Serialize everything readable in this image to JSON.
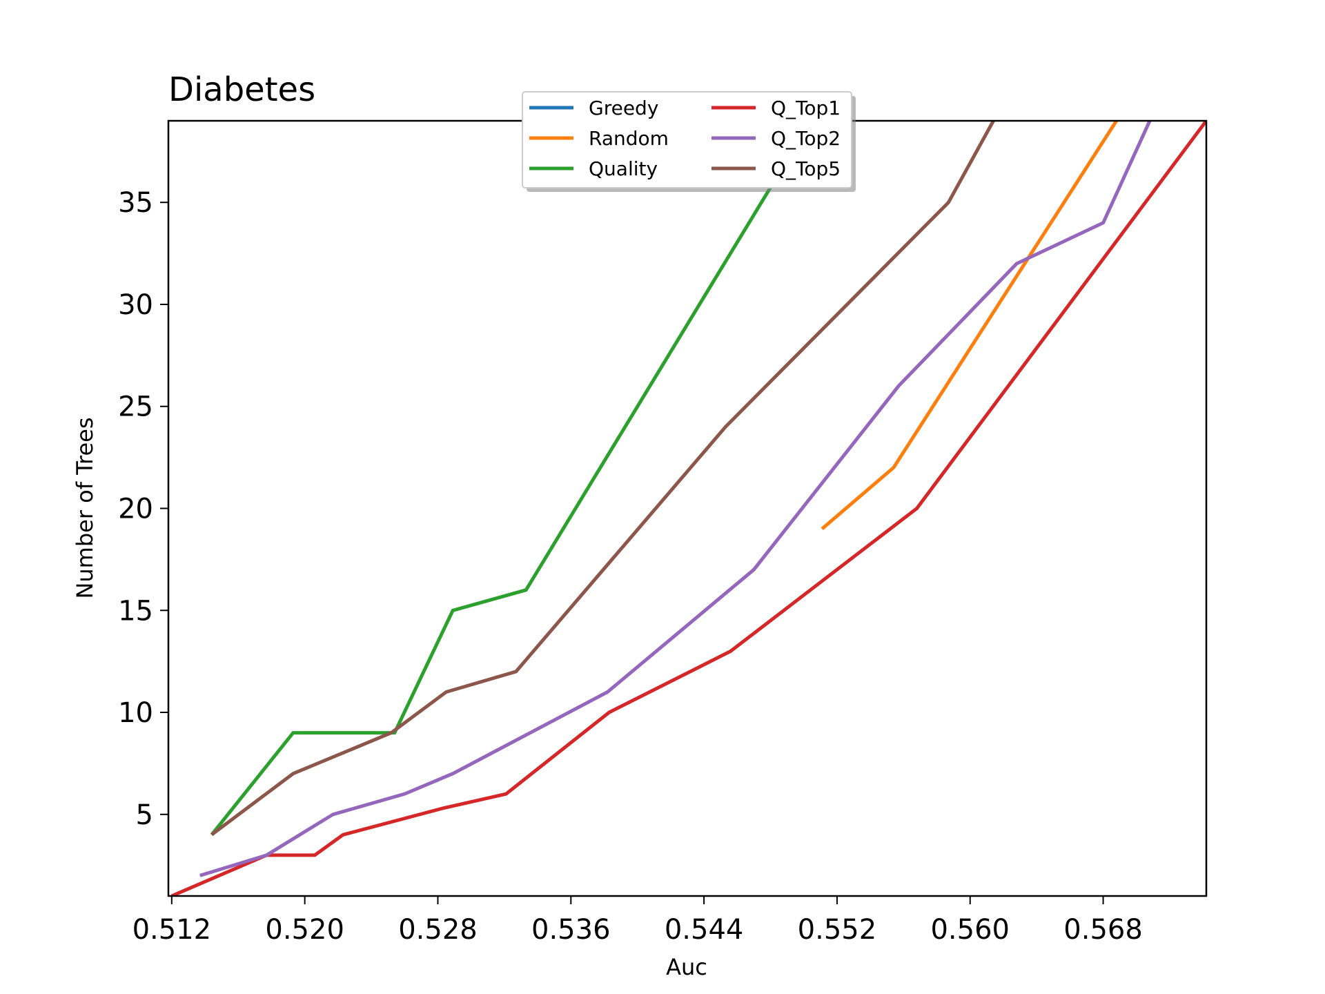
{
  "chart_data": {
    "type": "line",
    "title": "Diabetes",
    "xlabel": "Auc",
    "ylabel": "Number of Trees",
    "xlim": [
      0.5118,
      0.5742
    ],
    "ylim": [
      1,
      39
    ],
    "xticks": [
      0.512,
      0.52,
      0.528,
      0.536,
      0.544,
      0.552,
      0.56,
      0.568
    ],
    "xtick_labels": [
      "0.512",
      "0.520",
      "0.528",
      "0.536",
      "0.544",
      "0.552",
      "0.560",
      "0.568"
    ],
    "yticks": [
      5,
      10,
      15,
      20,
      25,
      30,
      35
    ],
    "ytick_labels": [
      "5",
      "10",
      "15",
      "20",
      "25",
      "30",
      "35"
    ],
    "grid": false,
    "legend": {
      "placement": "top-center",
      "columns": 2
    },
    "series": [
      {
        "name": "Greedy",
        "color": "#1f77b4",
        "x": [],
        "y": []
      },
      {
        "name": "Random",
        "color": "#ff7f0e",
        "x": [
          0.5511,
          0.5554,
          0.5688
        ],
        "y": [
          19,
          22,
          39
        ]
      },
      {
        "name": "Quality",
        "color": "#2ca02c",
        "x": [
          0.5144,
          0.5193,
          0.5254,
          0.5289,
          0.5333,
          0.5482
        ],
        "y": [
          4,
          9,
          9,
          15,
          16,
          36
        ]
      },
      {
        "name": "Q_Top1",
        "color": "#d62728",
        "x": [
          0.512,
          0.5177,
          0.5206,
          0.5223,
          0.5283,
          0.5321,
          0.5383,
          0.5456,
          0.5568,
          0.5742
        ],
        "y": [
          1,
          3,
          3,
          4,
          5.3,
          6,
          10,
          13,
          20,
          39
        ]
      },
      {
        "name": "Q_Top2",
        "color": "#9467bd",
        "x": [
          0.5137,
          0.5177,
          0.5217,
          0.526,
          0.5289,
          0.5382,
          0.547,
          0.5557,
          0.5628,
          0.568,
          0.5708
        ],
        "y": [
          2,
          3,
          5,
          6,
          7,
          11,
          17,
          26,
          32,
          34,
          39
        ]
      },
      {
        "name": "Q_Top5",
        "color": "#8c564b",
        "x": [
          0.5144,
          0.5193,
          0.5252,
          0.5285,
          0.5327,
          0.5453,
          0.5587,
          0.5614
        ],
        "y": [
          4,
          7,
          9,
          11,
          12,
          24,
          35,
          39
        ]
      }
    ]
  }
}
